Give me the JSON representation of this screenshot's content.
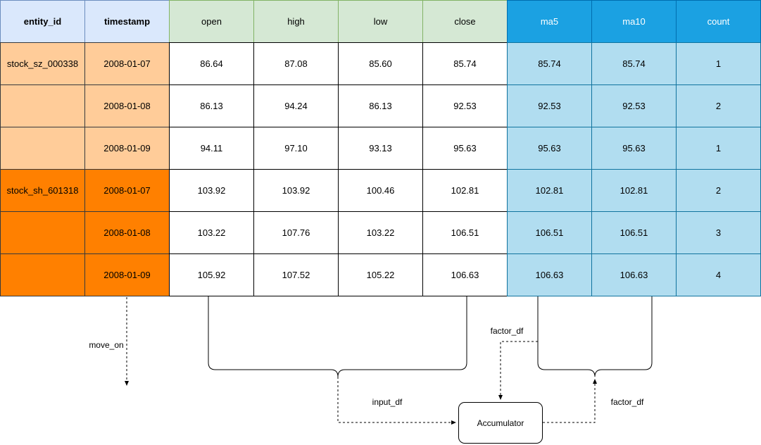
{
  "columns": [
    {
      "key": "entity_id",
      "label": "entity_id",
      "group": "key"
    },
    {
      "key": "timestamp",
      "label": "timestamp",
      "group": "key"
    },
    {
      "key": "open",
      "label": "open",
      "group": "price"
    },
    {
      "key": "high",
      "label": "high",
      "group": "price"
    },
    {
      "key": "low",
      "label": "low",
      "group": "price"
    },
    {
      "key": "close",
      "label": "close",
      "group": "price"
    },
    {
      "key": "ma5",
      "label": "ma5",
      "group": "factor"
    },
    {
      "key": "ma10",
      "label": "ma10",
      "group": "factor"
    },
    {
      "key": "count",
      "label": "count",
      "group": "factor"
    }
  ],
  "rows": [
    {
      "entity_id": "stock_sz_000338",
      "entity_group": "light",
      "timestamp": "2008-01-07",
      "open": "86.64",
      "high": "87.08",
      "low": "85.60",
      "close": "85.74",
      "ma5": "85.74",
      "ma10": "85.74",
      "count": "1"
    },
    {
      "entity_id": "",
      "entity_group": "light",
      "timestamp": "2008-01-08",
      "open": "86.13",
      "high": "94.24",
      "low": "86.13",
      "close": "92.53",
      "ma5": "92.53",
      "ma10": "92.53",
      "count": "2"
    },
    {
      "entity_id": "",
      "entity_group": "light",
      "timestamp": "2008-01-09",
      "open": "94.11",
      "high": "97.10",
      "low": "93.13",
      "close": "95.63",
      "ma5": "95.63",
      "ma10": "95.63",
      "count": "1"
    },
    {
      "entity_id": "stock_sh_601318",
      "entity_group": "dark",
      "timestamp": "2008-01-07",
      "open": "103.92",
      "high": "103.92",
      "low": "100.46",
      "close": "102.81",
      "ma5": "102.81",
      "ma10": "102.81",
      "count": "2"
    },
    {
      "entity_id": "",
      "entity_group": "dark",
      "timestamp": "2008-01-08",
      "open": "103.22",
      "high": "107.76",
      "low": "103.22",
      "close": "106.51",
      "ma5": "106.51",
      "ma10": "106.51",
      "count": "3"
    },
    {
      "entity_id": "",
      "entity_group": "dark",
      "timestamp": "2008-01-09",
      "open": "105.92",
      "high": "107.52",
      "low": "105.22",
      "close": "106.63",
      "ma5": "106.63",
      "ma10": "106.63",
      "count": "4"
    }
  ],
  "flow": {
    "move_on_label": "move_on",
    "input_df_label": "input_df",
    "factor_df_top_label": "factor_df",
    "factor_df_right_label": "factor_df",
    "accumulator_label": "Accumulator"
  },
  "colors": {
    "key_header_fill": "#dae8fc",
    "price_header_fill": "#d5e8d4",
    "factor_header_fill": "#1ba1e2",
    "entity_light_fill": "#ffcc99",
    "entity_dark_fill": "#ff8000",
    "factor_body_fill": "#b1ddf0"
  }
}
